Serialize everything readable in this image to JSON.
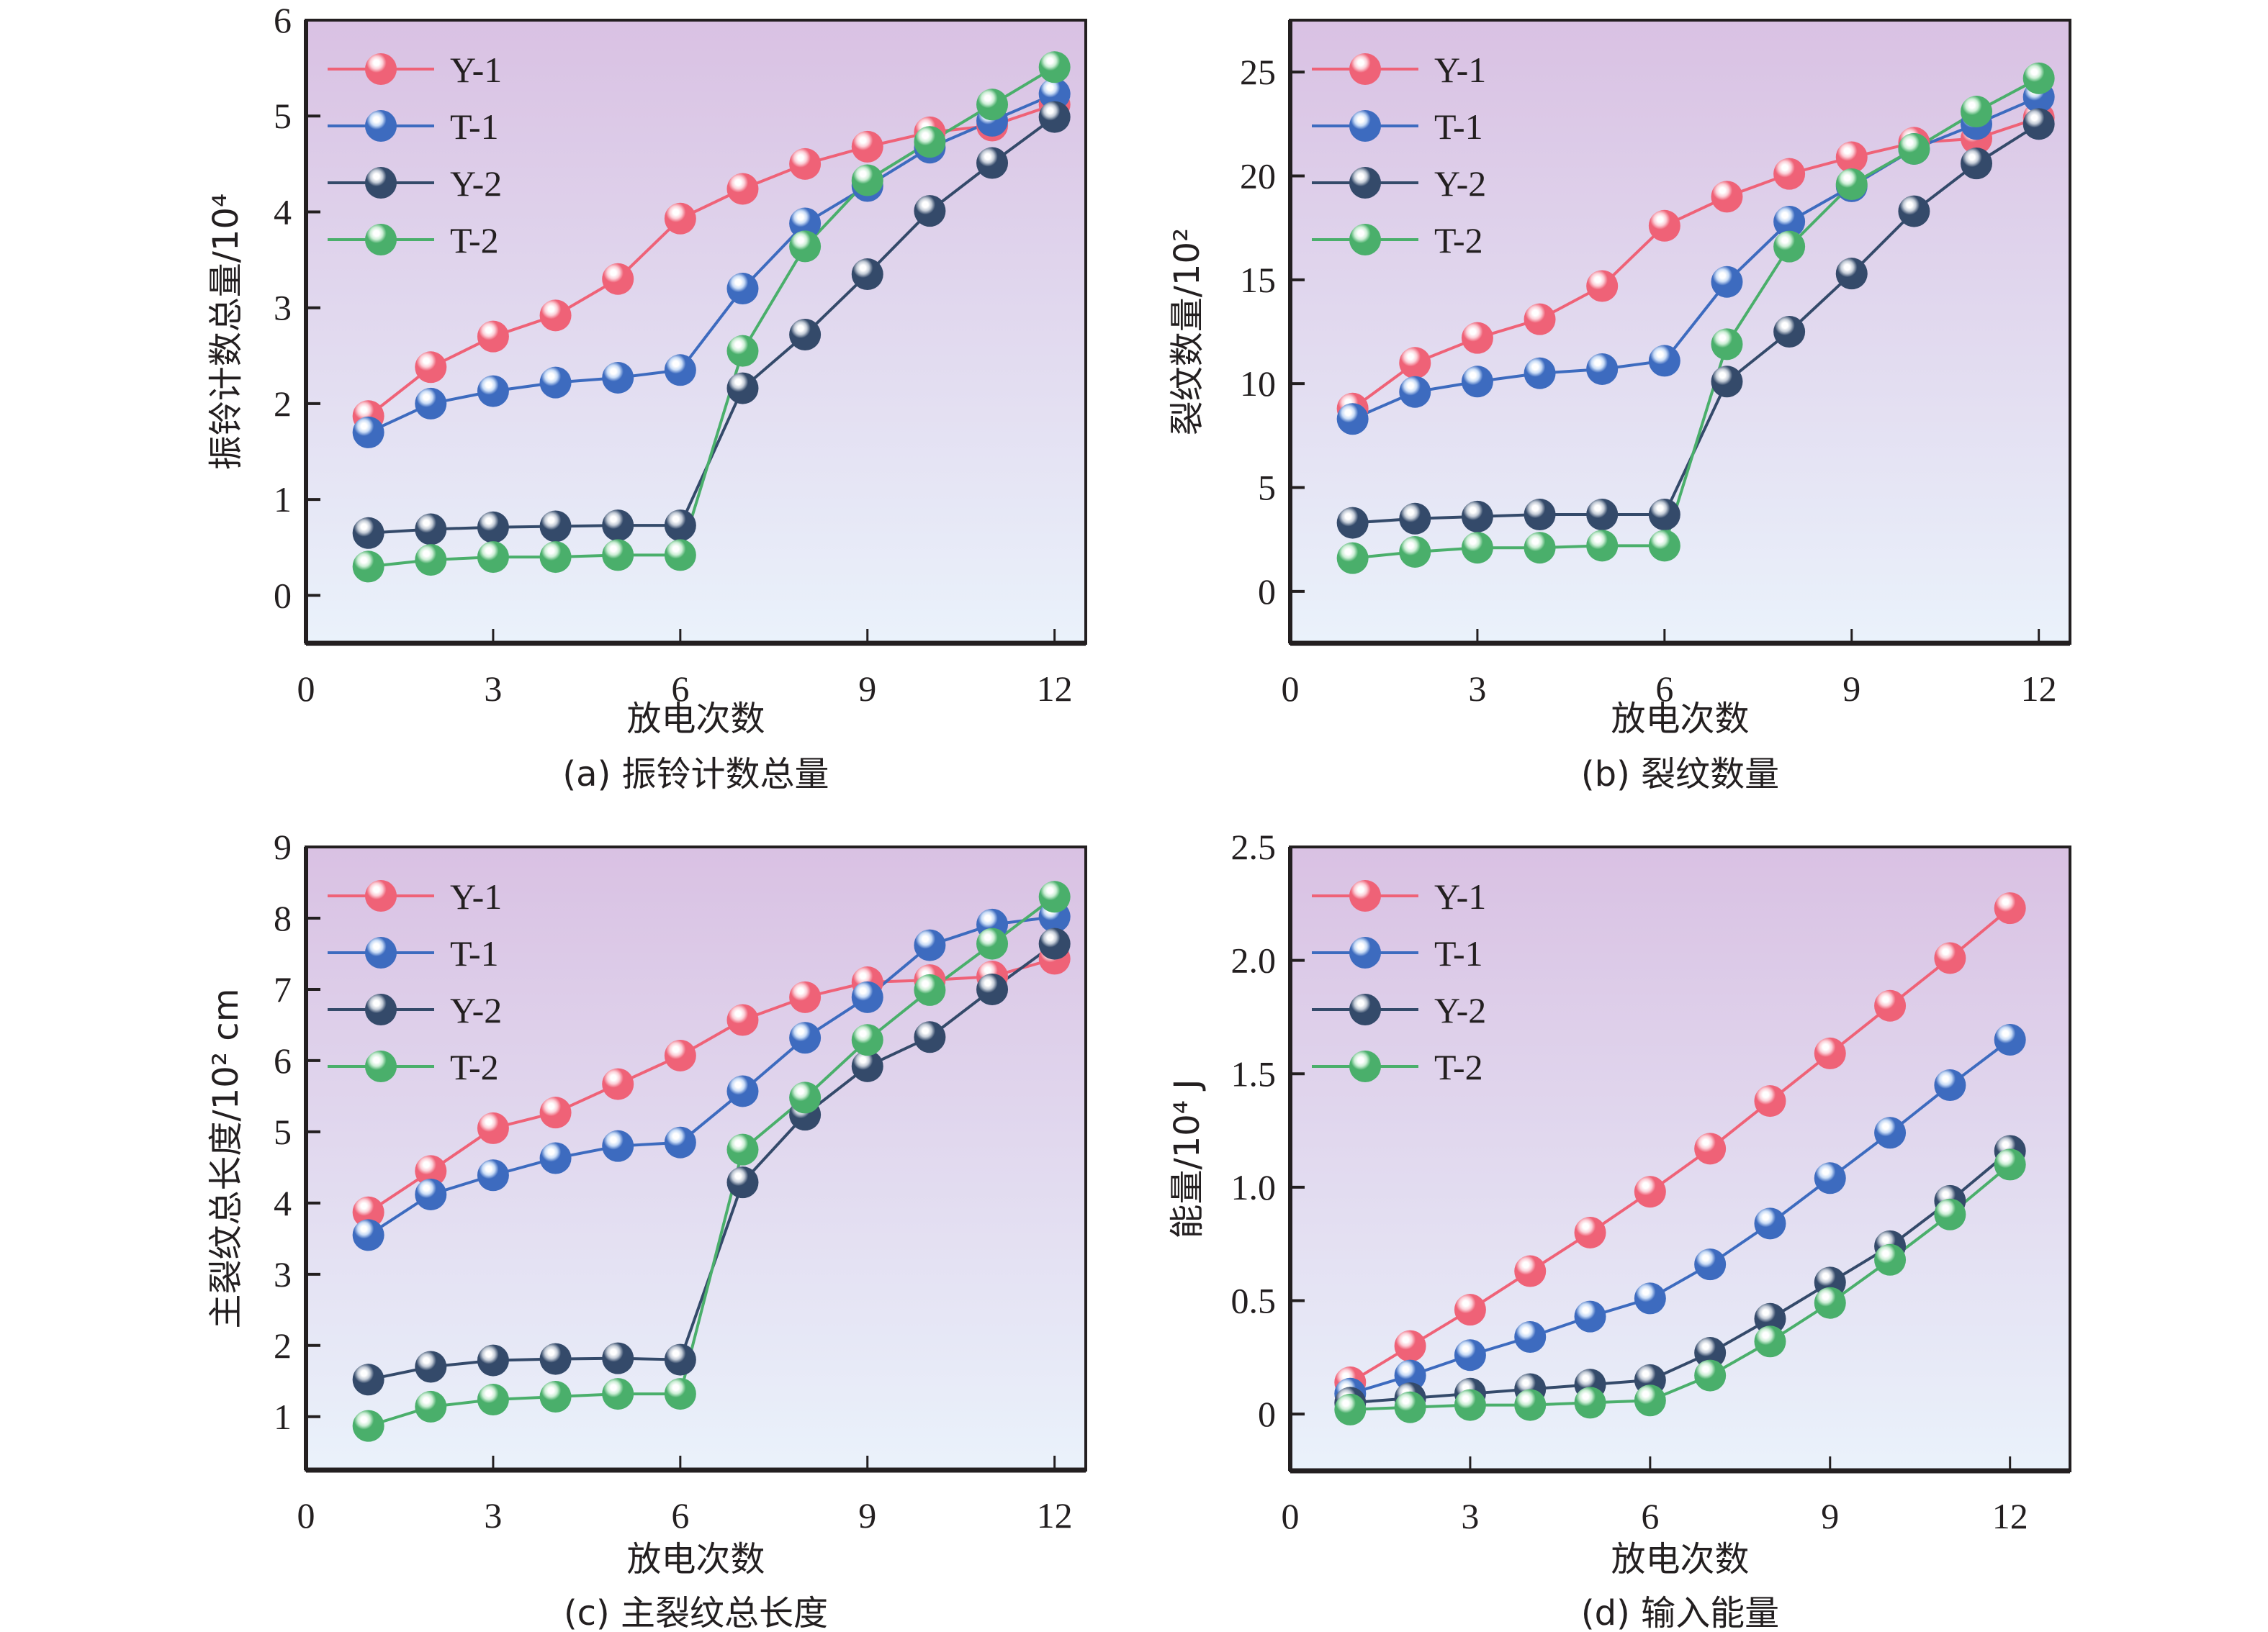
{
  "figure": {
    "series_styles": [
      {
        "name": "Y-1",
        "color": "#ef6277",
        "highlight": "#fbd0d8"
      },
      {
        "name": "T-1",
        "color": "#3d6bbf",
        "highlight": "#c9dcf6"
      },
      {
        "name": "Y-2",
        "color": "#344a6a",
        "highlight": "#c3cbd6"
      },
      {
        "name": "T-2",
        "color": "#4aaf6b",
        "highlight": "#cdeed6"
      }
    ],
    "background_gradient": {
      "top": "#d9c1e3",
      "bottom": "#eaf2fb"
    }
  },
  "chart_data": [
    {
      "id": "a",
      "type": "line",
      "caption": "(a) 振铃计数总量",
      "xlabel": "放电次数",
      "ylabel": "振铃计数总量/10⁴",
      "xlim": [
        0,
        12.5
      ],
      "ylim": [
        -0.5,
        6
      ],
      "xticks": [
        0,
        3,
        6,
        9,
        12
      ],
      "yticks": [
        0,
        1,
        2,
        3,
        4,
        5,
        6
      ],
      "ytick_labels": [
        "0",
        "1",
        "2",
        "3",
        "4",
        "5",
        "6"
      ],
      "legend": "top-left",
      "x": [
        1,
        2,
        3,
        4,
        5,
        6,
        7,
        8,
        9,
        10,
        11,
        12
      ],
      "series": [
        {
          "name": "Y-1",
          "values": [
            1.87,
            2.38,
            2.7,
            2.92,
            3.3,
            3.93,
            4.24,
            4.5,
            4.68,
            4.83,
            4.9,
            5.12
          ]
        },
        {
          "name": "T-1",
          "values": [
            1.7,
            2.0,
            2.13,
            2.22,
            2.27,
            2.35,
            3.2,
            3.88,
            4.27,
            4.67,
            4.95,
            5.23
          ]
        },
        {
          "name": "Y-2",
          "values": [
            0.65,
            0.69,
            0.71,
            0.72,
            0.73,
            0.73,
            2.16,
            2.72,
            3.35,
            4.01,
            4.51,
            4.99
          ]
        },
        {
          "name": "T-2",
          "values": [
            0.3,
            0.37,
            0.4,
            0.4,
            0.42,
            0.42,
            2.55,
            3.64,
            4.33,
            4.73,
            5.12,
            5.51
          ]
        }
      ]
    },
    {
      "id": "b",
      "type": "line",
      "caption": "(b) 裂纹数量",
      "xlabel": "放电次数",
      "ylabel": "裂纹数量/10²",
      "xlim": [
        0,
        12.5
      ],
      "ylim": [
        -2.5,
        27.5
      ],
      "xticks": [
        0,
        3,
        6,
        9,
        12
      ],
      "yticks": [
        0,
        5,
        10,
        15,
        20,
        25
      ],
      "ytick_labels": [
        "0",
        "5",
        "10",
        "15",
        "20",
        "25"
      ],
      "legend": "top-left",
      "x": [
        1,
        2,
        3,
        4,
        5,
        6,
        7,
        8,
        9,
        10,
        11,
        12
      ],
      "series": [
        {
          "name": "Y-1",
          "values": [
            8.8,
            11.0,
            12.2,
            13.1,
            14.7,
            17.6,
            19.0,
            20.1,
            20.9,
            21.6,
            21.8,
            22.8
          ]
        },
        {
          "name": "T-1",
          "values": [
            8.3,
            9.6,
            10.1,
            10.5,
            10.7,
            11.1,
            14.9,
            17.8,
            19.5,
            21.3,
            22.5,
            23.8
          ]
        },
        {
          "name": "Y-2",
          "values": [
            3.3,
            3.5,
            3.6,
            3.7,
            3.7,
            3.7,
            10.1,
            12.5,
            15.3,
            18.3,
            20.6,
            22.5
          ]
        },
        {
          "name": "T-2",
          "values": [
            1.6,
            1.9,
            2.1,
            2.1,
            2.2,
            2.2,
            11.9,
            16.6,
            19.6,
            21.3,
            23.1,
            24.7
          ]
        }
      ]
    },
    {
      "id": "c",
      "type": "line",
      "caption": "(c) 主裂纹总长度",
      "xlabel": "放电次数",
      "ylabel": "主裂纹总长度/10² cm",
      "xlim": [
        0,
        12.5
      ],
      "ylim": [
        0.25,
        9
      ],
      "xticks": [
        0,
        3,
        6,
        9,
        12
      ],
      "yticks": [
        1,
        2,
        3,
        4,
        5,
        6,
        7,
        8,
        9
      ],
      "ytick_labels": [
        "1",
        "2",
        "3",
        "4",
        "5",
        "6",
        "7",
        "8",
        "9"
      ],
      "legend": "top-left",
      "x": [
        1,
        2,
        3,
        4,
        5,
        6,
        7,
        8,
        9,
        10,
        11,
        12
      ],
      "series": [
        {
          "name": "Y-1",
          "values": [
            3.87,
            4.45,
            5.05,
            5.27,
            5.67,
            6.07,
            6.57,
            6.89,
            7.1,
            7.13,
            7.18,
            7.43
          ]
        },
        {
          "name": "T-1",
          "values": [
            3.55,
            4.12,
            4.39,
            4.63,
            4.8,
            4.85,
            5.57,
            6.32,
            6.89,
            7.62,
            7.91,
            8.02
          ]
        },
        {
          "name": "Y-2",
          "values": [
            1.52,
            1.7,
            1.79,
            1.81,
            1.82,
            1.8,
            4.29,
            5.24,
            5.92,
            6.33,
            7.0,
            7.64
          ]
        },
        {
          "name": "T-2",
          "values": [
            0.87,
            1.14,
            1.24,
            1.28,
            1.32,
            1.32,
            4.75,
            5.48,
            6.29,
            6.99,
            7.64,
            8.3
          ]
        }
      ]
    },
    {
      "id": "d",
      "type": "line",
      "caption": "(d) 输入能量",
      "xlabel": "放电次数",
      "ylabel": "能量/10⁴ J",
      "xlim": [
        0,
        13
      ],
      "ylim": [
        -0.25,
        2.5
      ],
      "xticks": [
        0,
        3,
        6,
        9,
        12
      ],
      "yticks": [
        0,
        0.5,
        1.0,
        1.5,
        2.0,
        2.5
      ],
      "ytick_labels": [
        "0",
        "0.5",
        "1.0",
        "1.5",
        "2.0",
        "2.5"
      ],
      "legend": "top-left",
      "x": [
        1,
        2,
        3,
        4,
        5,
        6,
        7,
        8,
        9,
        10,
        11,
        12
      ],
      "series": [
        {
          "name": "Y-1",
          "values": [
            0.14,
            0.3,
            0.46,
            0.63,
            0.8,
            0.98,
            1.17,
            1.38,
            1.59,
            1.8,
            2.01,
            2.23
          ]
        },
        {
          "name": "T-1",
          "values": [
            0.09,
            0.17,
            0.26,
            0.34,
            0.43,
            0.51,
            0.66,
            0.84,
            1.04,
            1.24,
            1.45,
            1.65
          ]
        },
        {
          "name": "Y-2",
          "values": [
            0.05,
            0.07,
            0.09,
            0.11,
            0.13,
            0.15,
            0.27,
            0.42,
            0.58,
            0.74,
            0.94,
            1.16
          ]
        },
        {
          "name": "T-2",
          "values": [
            0.02,
            0.03,
            0.04,
            0.04,
            0.05,
            0.06,
            0.17,
            0.32,
            0.49,
            0.68,
            0.88,
            1.1
          ]
        }
      ]
    }
  ]
}
